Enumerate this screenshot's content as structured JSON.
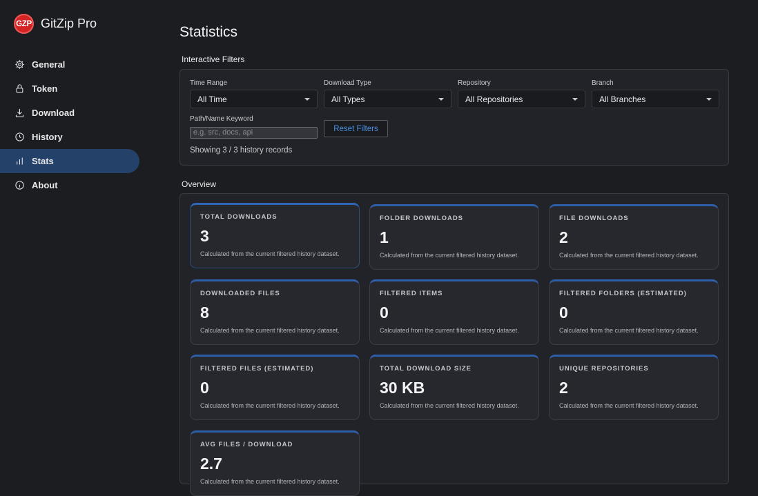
{
  "app": {
    "name": "GitZip Pro",
    "logo_text": "GZP"
  },
  "nav": [
    {
      "label": "General",
      "icon": "gear-icon",
      "active": false
    },
    {
      "label": "Token",
      "icon": "lock-icon",
      "active": false
    },
    {
      "label": "Download",
      "icon": "download-icon",
      "active": false
    },
    {
      "label": "History",
      "icon": "clock-icon",
      "active": false
    },
    {
      "label": "Stats",
      "icon": "bar-chart-icon",
      "active": true
    },
    {
      "label": "About",
      "icon": "info-icon",
      "active": false
    }
  ],
  "page": {
    "title": "Statistics"
  },
  "filters": {
    "section_title": "Interactive Filters",
    "time_range": {
      "label": "Time Range",
      "value": "All Time"
    },
    "download_type": {
      "label": "Download Type",
      "value": "All Types"
    },
    "repository": {
      "label": "Repository",
      "value": "All Repositories"
    },
    "branch": {
      "label": "Branch",
      "value": "All Branches"
    },
    "keyword": {
      "label": "Path/Name Keyword",
      "placeholder": "e.g. src, docs, api",
      "value": ""
    },
    "reset_label": "Reset Filters",
    "showing_text": "Showing 3 / 3 history records"
  },
  "overview": {
    "section_title": "Overview",
    "cards": [
      {
        "label": "TOTAL DOWNLOADS",
        "value": "3",
        "desc": "Calculated from the current filtered history dataset."
      },
      {
        "label": "FOLDER DOWNLOADS",
        "value": "1",
        "desc": "Calculated from the current filtered history dataset."
      },
      {
        "label": "FILE DOWNLOADS",
        "value": "2",
        "desc": "Calculated from the current filtered history dataset."
      },
      {
        "label": "DOWNLOADED FILES",
        "value": "8",
        "desc": "Calculated from the current filtered history dataset."
      },
      {
        "label": "FILTERED ITEMS",
        "value": "0",
        "desc": "Calculated from the current filtered history dataset."
      },
      {
        "label": "FILTERED FOLDERS (ESTIMATED)",
        "value": "0",
        "desc": "Calculated from the current filtered history dataset."
      },
      {
        "label": "FILTERED FILES (ESTIMATED)",
        "value": "0",
        "desc": "Calculated from the current filtered history dataset."
      },
      {
        "label": "TOTAL DOWNLOAD SIZE",
        "value": "30 KB",
        "desc": "Calculated from the current filtered history dataset."
      },
      {
        "label": "UNIQUE REPOSITORIES",
        "value": "2",
        "desc": "Calculated from the current filtered history dataset."
      },
      {
        "label": "AVG FILES / DOWNLOAD",
        "value": "2.7",
        "desc": "Calculated from the current filtered history dataset."
      }
    ]
  },
  "colors": {
    "accent": "#2f5fa8",
    "active_nav": "#24416a",
    "brand": "#d42424",
    "link": "#4a90e2"
  }
}
